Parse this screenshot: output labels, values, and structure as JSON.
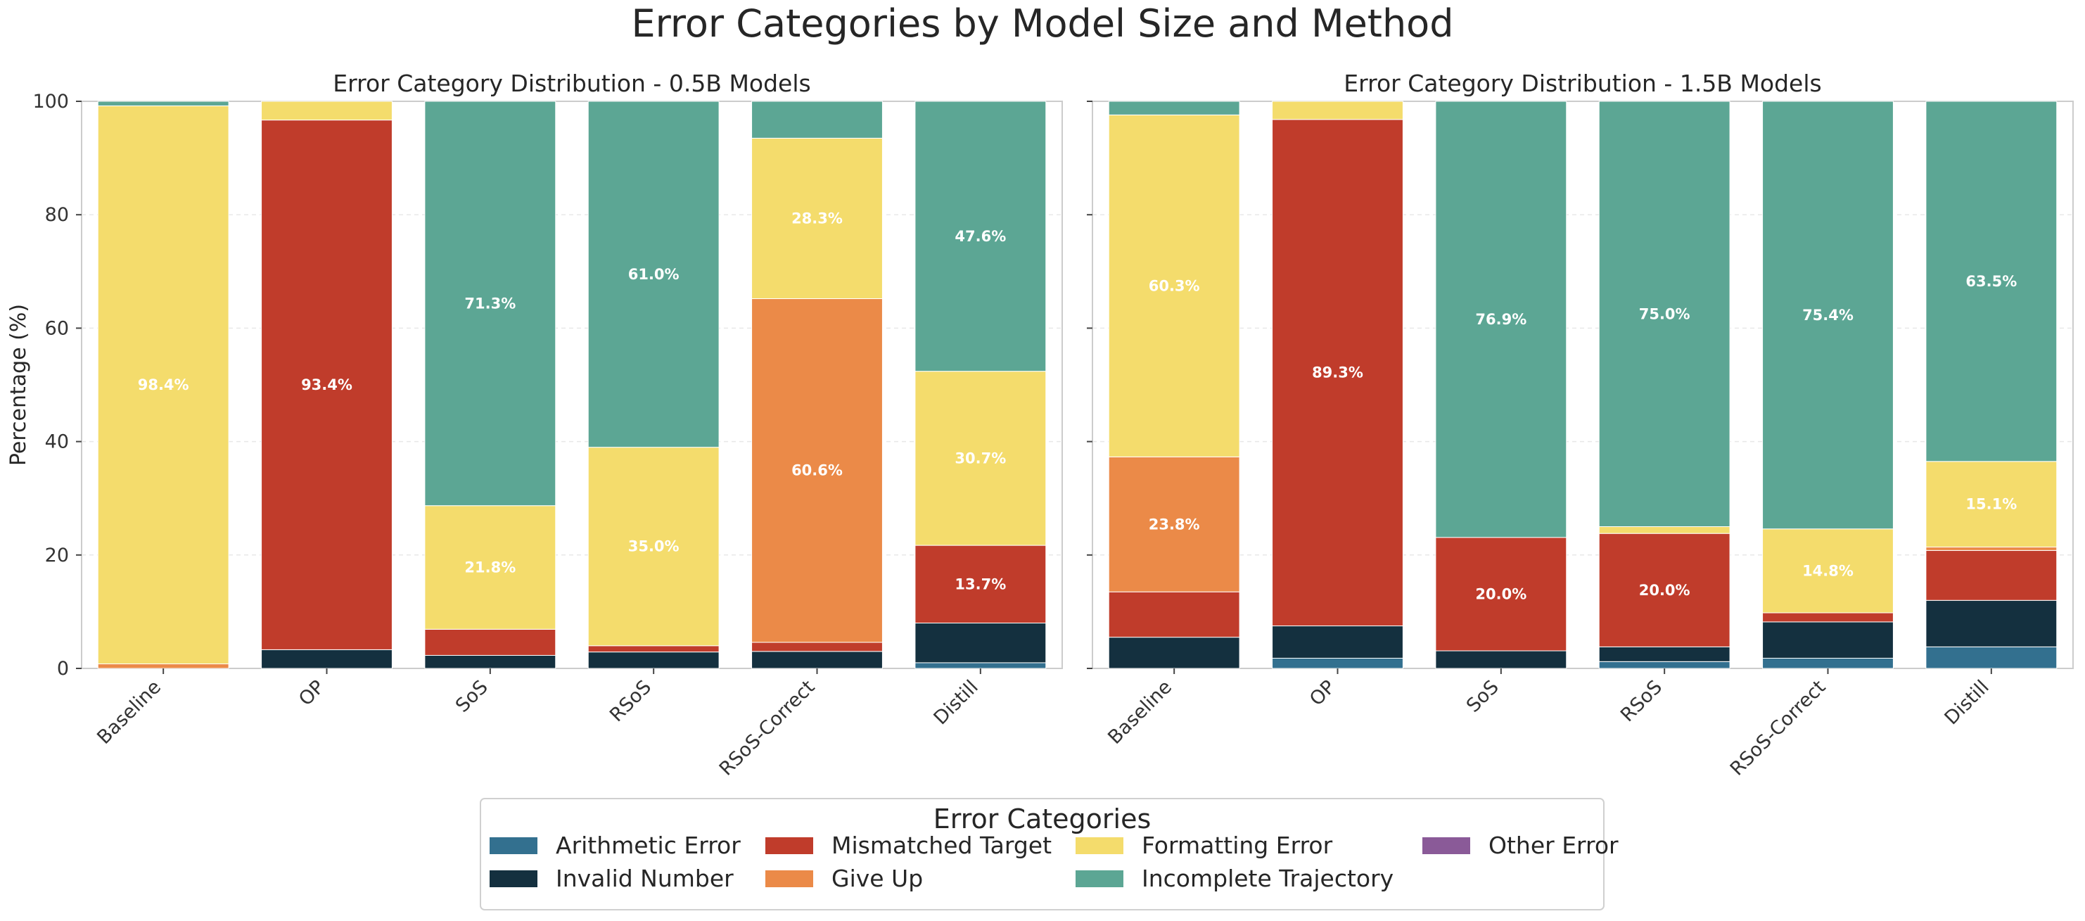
{
  "suptitle": "Error Categories by Model Size and Method",
  "legend": {
    "title": "Error Categories",
    "placement": "bottom-center",
    "entries": [
      "Arithmetic Error",
      "Mismatched Target",
      "Formatting Error",
      "Other Error",
      "Invalid Number",
      "Give Up",
      "Incomplete Trajectory"
    ]
  },
  "colors": {
    "Arithmetic Error": "#33708f",
    "Invalid Number": "#14303f",
    "Mismatched Target": "#c03c2b",
    "Give Up": "#eb8a48",
    "Formatting Error": "#f4dc6c",
    "Incomplete Trajectory": "#5ca694",
    "Other Error": "#8a5a98"
  },
  "chart_data": [
    {
      "type": "bar",
      "stacked": true,
      "title": "Error Category Distribution - 0.5B Models",
      "xlabel": "",
      "ylabel": "Percentage (%)",
      "ylim": [
        0,
        100
      ],
      "yticks": [
        0,
        20,
        40,
        60,
        80,
        100
      ],
      "grid": true,
      "categories": [
        "Baseline",
        "OP",
        "SoS",
        "RSoS",
        "RSoS-Correct",
        "Distill"
      ],
      "series": [
        {
          "name": "Arithmetic Error",
          "values": [
            0.0,
            0.0,
            0.0,
            0.0,
            0.0,
            1.0
          ]
        },
        {
          "name": "Invalid Number",
          "values": [
            0.0,
            3.3,
            2.3,
            2.9,
            3.0,
            7.0
          ]
        },
        {
          "name": "Mismatched Target",
          "values": [
            0.0,
            93.4,
            4.6,
            1.1,
            1.6,
            13.7
          ]
        },
        {
          "name": "Give Up",
          "values": [
            0.8,
            0.0,
            0.0,
            0.0,
            60.6,
            0.0
          ]
        },
        {
          "name": "Formatting Error",
          "values": [
            98.4,
            3.3,
            21.8,
            35.0,
            28.3,
            30.7
          ]
        },
        {
          "name": "Incomplete Trajectory",
          "values": [
            0.8,
            0.0,
            71.3,
            61.0,
            6.5,
            47.6
          ]
        },
        {
          "name": "Other Error",
          "values": [
            0.0,
            0.0,
            0.0,
            0.0,
            0.0,
            0.0
          ]
        }
      ],
      "data_labels": [
        {
          "category": "Baseline",
          "series": "Formatting Error",
          "text": "98.4%"
        },
        {
          "category": "OP",
          "series": "Mismatched Target",
          "text": "93.4%"
        },
        {
          "category": "SoS",
          "series": "Incomplete Trajectory",
          "text": "71.3%"
        },
        {
          "category": "SoS",
          "series": "Formatting Error",
          "text": "21.8%"
        },
        {
          "category": "RSoS",
          "series": "Incomplete Trajectory",
          "text": "61.0%"
        },
        {
          "category": "RSoS",
          "series": "Formatting Error",
          "text": "35.0%"
        },
        {
          "category": "RSoS-Correct",
          "series": "Formatting Error",
          "text": "28.3%"
        },
        {
          "category": "RSoS-Correct",
          "series": "Give Up",
          "text": "60.6%"
        },
        {
          "category": "Distill",
          "series": "Incomplete Trajectory",
          "text": "47.6%"
        },
        {
          "category": "Distill",
          "series": "Formatting Error",
          "text": "30.7%"
        },
        {
          "category": "Distill",
          "series": "Mismatched Target",
          "text": "13.7%"
        }
      ]
    },
    {
      "type": "bar",
      "stacked": true,
      "title": "Error Category Distribution - 1.5B Models",
      "xlabel": "",
      "ylabel": "",
      "ylim": [
        0,
        100
      ],
      "yticks": [
        0,
        20,
        40,
        60,
        80,
        100
      ],
      "grid": true,
      "categories": [
        "Baseline",
        "OP",
        "SoS",
        "RSoS",
        "RSoS-Correct",
        "Distill"
      ],
      "series": [
        {
          "name": "Arithmetic Error",
          "values": [
            0.0,
            1.8,
            0.0,
            1.2,
            1.8,
            3.8
          ]
        },
        {
          "name": "Invalid Number",
          "values": [
            5.5,
            5.7,
            3.1,
            2.6,
            6.4,
            8.2
          ]
        },
        {
          "name": "Mismatched Target",
          "values": [
            8.0,
            89.3,
            20.0,
            20.0,
            1.6,
            8.8
          ]
        },
        {
          "name": "Give Up",
          "values": [
            23.8,
            0.0,
            0.0,
            0.0,
            0.0,
            0.6
          ]
        },
        {
          "name": "Formatting Error",
          "values": [
            60.3,
            3.2,
            0.0,
            1.2,
            14.8,
            15.1
          ]
        },
        {
          "name": "Incomplete Trajectory",
          "values": [
            2.4,
            0.0,
            76.9,
            75.0,
            75.4,
            63.5
          ]
        },
        {
          "name": "Other Error",
          "values": [
            0.0,
            0.0,
            0.0,
            0.0,
            0.0,
            0.0
          ]
        }
      ],
      "data_labels": [
        {
          "category": "Baseline",
          "series": "Formatting Error",
          "text": "60.3%"
        },
        {
          "category": "Baseline",
          "series": "Give Up",
          "text": "23.8%"
        },
        {
          "category": "OP",
          "series": "Mismatched Target",
          "text": "89.3%"
        },
        {
          "category": "SoS",
          "series": "Incomplete Trajectory",
          "text": "76.9%"
        },
        {
          "category": "SoS",
          "series": "Mismatched Target",
          "text": "20.0%"
        },
        {
          "category": "RSoS",
          "series": "Incomplete Trajectory",
          "text": "75.0%"
        },
        {
          "category": "RSoS",
          "series": "Mismatched Target",
          "text": "20.0%"
        },
        {
          "category": "RSoS-Correct",
          "series": "Incomplete Trajectory",
          "text": "75.4%"
        },
        {
          "category": "RSoS-Correct",
          "series": "Formatting Error",
          "text": "14.8%"
        },
        {
          "category": "Distill",
          "series": "Incomplete Trajectory",
          "text": "63.5%"
        },
        {
          "category": "Distill",
          "series": "Formatting Error",
          "text": "15.1%"
        }
      ]
    }
  ]
}
